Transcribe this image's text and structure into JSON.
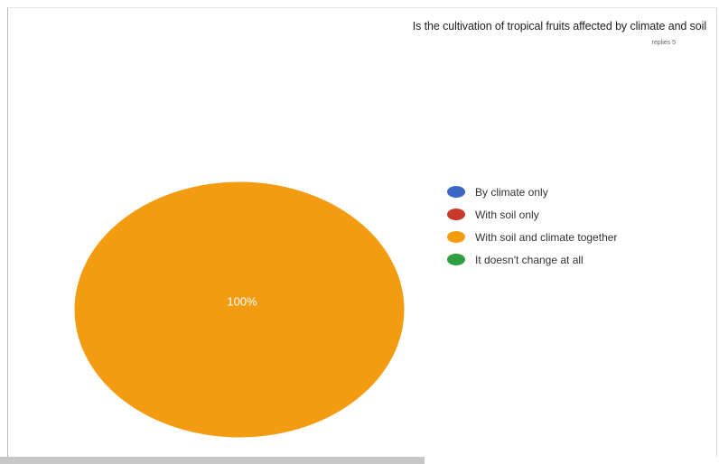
{
  "chart_data": {
    "type": "pie",
    "title": "Is the cultivation of tropical fruits affected by climate and soil",
    "subtitle": "replies 5",
    "slices": [
      {
        "label": "By climate only",
        "value": 0,
        "color": "#3C66C4"
      },
      {
        "label": "With soil only",
        "value": 0,
        "color": "#C9392B"
      },
      {
        "label": "With soil and climate together",
        "value": 100,
        "color": "#F39C12"
      },
      {
        "label": "It doesn't change at all",
        "value": 0,
        "color": "#2E9E3E"
      }
    ],
    "data_labels": [
      "100%"
    ],
    "legend_position": "right"
  }
}
